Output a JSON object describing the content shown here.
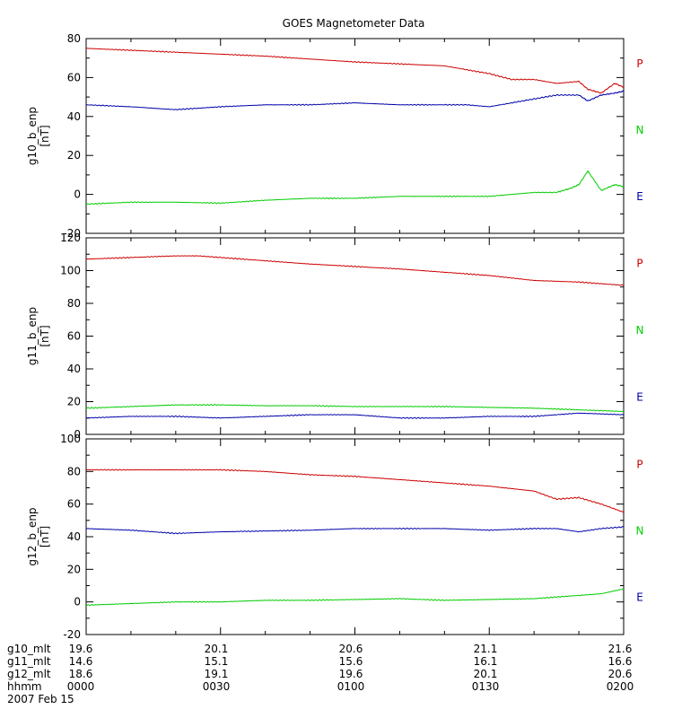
{
  "title": "GOES Magnetometer Data",
  "colors": {
    "P": "#cc0000",
    "N": "#00cc00",
    "E": "#0000aa",
    "axis": "#000000"
  },
  "footer": {
    "rows": [
      {
        "label": "g10_mlt",
        "values": [
          "19.6",
          "20.1",
          "20.6",
          "21.1",
          "21.6"
        ]
      },
      {
        "label": "g11_mlt",
        "values": [
          "14.6",
          "15.1",
          "15.6",
          "16.1",
          "16.6"
        ]
      },
      {
        "label": "g12_mlt",
        "values": [
          "18.6",
          "19.1",
          "19.6",
          "20.1",
          "20.6"
        ]
      },
      {
        "label": "hhmm",
        "values": [
          "0000",
          "0030",
          "0100",
          "0130",
          "0200"
        ]
      }
    ],
    "date": "2007 Feb 15"
  },
  "chart_data": [
    {
      "type": "line",
      "ylabel": "g10_b_enp",
      "yunit": "[nT]",
      "ylim": [
        -20,
        80
      ],
      "yticks": [
        -20,
        0,
        20,
        40,
        60,
        80
      ],
      "xlim": [
        0,
        120
      ],
      "xticks": [
        0,
        30,
        60,
        90,
        120
      ],
      "series": [
        {
          "name": "P",
          "color": "#cc0000",
          "x": [
            0,
            10,
            20,
            30,
            40,
            50,
            60,
            70,
            80,
            90,
            95,
            100,
            105,
            110,
            112,
            115,
            118,
            120
          ],
          "y": [
            75,
            74,
            73,
            72,
            71,
            69.5,
            68,
            67,
            66,
            62,
            59,
            59,
            57,
            58,
            54,
            52,
            57,
            55
          ]
        },
        {
          "name": "N",
          "color": "#00cc00",
          "x": [
            0,
            10,
            20,
            30,
            40,
            50,
            60,
            70,
            80,
            90,
            95,
            100,
            105,
            108,
            110,
            112,
            115,
            118,
            120
          ],
          "y": [
            -5,
            -4,
            -4,
            -4.5,
            -3,
            -2,
            -2,
            -1,
            -1,
            -1,
            0,
            1,
            1,
            3,
            5,
            12,
            2,
            5,
            4
          ]
        },
        {
          "name": "E",
          "color": "#0000aa",
          "x": [
            0,
            10,
            20,
            30,
            40,
            50,
            60,
            70,
            80,
            85,
            90,
            95,
            100,
            105,
            110,
            112,
            115,
            118,
            120
          ],
          "y": [
            46,
            45,
            43.5,
            45,
            46,
            46,
            47,
            46,
            46,
            46,
            45,
            47,
            49,
            51,
            51,
            48,
            51,
            52,
            53
          ]
        }
      ]
    },
    {
      "type": "line",
      "ylabel": "g11_b_enp",
      "yunit": "[nT]",
      "ylim": [
        0,
        120
      ],
      "yticks": [
        0,
        20,
        40,
        60,
        80,
        100,
        120
      ],
      "xlim": [
        0,
        120
      ],
      "xticks": [
        0,
        30,
        60,
        90,
        120
      ],
      "series": [
        {
          "name": "P",
          "color": "#cc0000",
          "x": [
            0,
            10,
            20,
            25,
            30,
            40,
            50,
            60,
            70,
            80,
            90,
            100,
            110,
            120
          ],
          "y": [
            107,
            108,
            109,
            109,
            108,
            106,
            104,
            102.5,
            101,
            99,
            97,
            94,
            93,
            91
          ]
        },
        {
          "name": "N",
          "color": "#00cc00",
          "x": [
            0,
            10,
            20,
            30,
            40,
            50,
            60,
            70,
            80,
            90,
            100,
            110,
            120
          ],
          "y": [
            16,
            17,
            18,
            18,
            17.5,
            17.5,
            17,
            17,
            17,
            16.5,
            16,
            15,
            14
          ]
        },
        {
          "name": "E",
          "color": "#0000aa",
          "x": [
            0,
            10,
            20,
            30,
            40,
            50,
            60,
            70,
            80,
            90,
            100,
            110,
            120
          ],
          "y": [
            10,
            11,
            11,
            10,
            11,
            12,
            12,
            10,
            10,
            11,
            11,
            13,
            12
          ]
        }
      ]
    },
    {
      "type": "line",
      "ylabel": "g12_b_enp",
      "yunit": "[nT]",
      "ylim": [
        -20,
        100
      ],
      "yticks": [
        -20,
        0,
        20,
        40,
        60,
        80,
        100
      ],
      "xlim": [
        0,
        120
      ],
      "xticks": [
        0,
        30,
        60,
        90,
        120
      ],
      "series": [
        {
          "name": "P",
          "color": "#cc0000",
          "x": [
            0,
            10,
            20,
            30,
            40,
            50,
            60,
            70,
            80,
            90,
            100,
            105,
            110,
            115,
            120
          ],
          "y": [
            81,
            81,
            81,
            81,
            80,
            78,
            77,
            75,
            73,
            71,
            68,
            63,
            64,
            60,
            55
          ]
        },
        {
          "name": "N",
          "color": "#00cc00",
          "x": [
            0,
            10,
            20,
            30,
            40,
            50,
            60,
            70,
            80,
            90,
            100,
            110,
            115,
            120
          ],
          "y": [
            -2,
            -1,
            0,
            0,
            1,
            1,
            1.5,
            2,
            1,
            1.5,
            2,
            4,
            5,
            8
          ]
        },
        {
          "name": "E",
          "color": "#0000aa",
          "x": [
            0,
            10,
            20,
            30,
            40,
            50,
            60,
            70,
            80,
            90,
            100,
            105,
            110,
            115,
            120
          ],
          "y": [
            45,
            44,
            42,
            43,
            43.5,
            44,
            45,
            45,
            45,
            44,
            45,
            45,
            43,
            45,
            46
          ]
        }
      ]
    }
  ]
}
